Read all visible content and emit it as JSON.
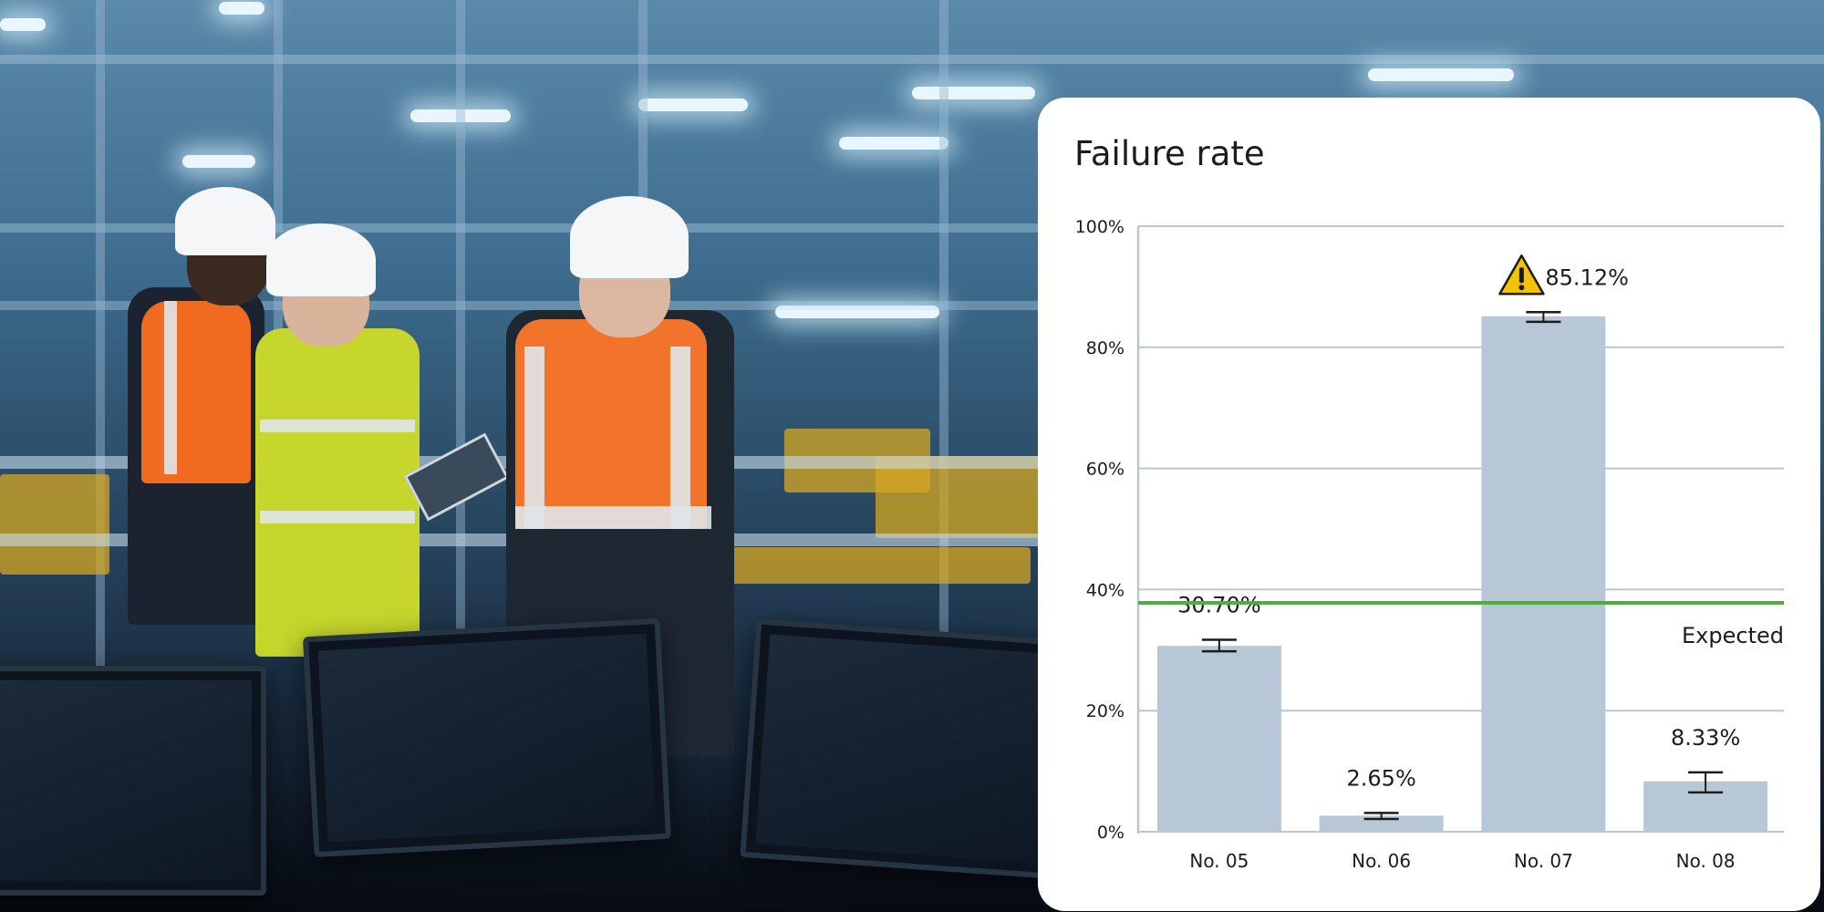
{
  "chart_data": {
    "type": "bar",
    "title": "Failure rate",
    "categories": [
      "No. 05",
      "No. 06",
      "No. 07",
      "No. 08"
    ],
    "values": [
      30.7,
      2.65,
      85.12,
      8.33
    ],
    "value_labels": [
      "30.70%",
      "2.65%",
      "85.12%",
      "8.33%"
    ],
    "error_bars": [
      {
        "low": 29.8,
        "high": 31.7
      },
      {
        "low": 2.1,
        "high": 3.1
      },
      {
        "low": 84.2,
        "high": 85.8
      },
      {
        "low": 6.5,
        "high": 9.8
      }
    ],
    "ylim": [
      0,
      100
    ],
    "yticks": [
      0,
      20,
      40,
      60,
      80,
      100
    ],
    "ytick_labels": [
      "0%",
      "20%",
      "40%",
      "60%",
      "80%",
      "100%"
    ],
    "grid": true,
    "bar_color": "#b8c7d6",
    "grid_color": "#b8c7d6",
    "reference_line": {
      "label": "Expected",
      "value": 37.8,
      "color": "#4caf3f"
    },
    "warning": {
      "category": "No. 07",
      "icon": "warning-triangle-icon",
      "color": "#e3262b",
      "icon_color": "#f5c400"
    }
  }
}
